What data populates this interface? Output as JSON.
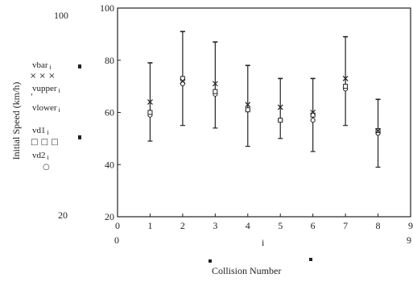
{
  "chart_data": {
    "type": "scatter",
    "x": [
      1,
      2,
      3,
      4,
      5,
      6,
      7,
      8
    ],
    "series": [
      {
        "name": "vbar",
        "values": [
          64,
          72,
          71,
          63,
          62,
          60,
          73,
          53
        ],
        "marker": "x"
      },
      {
        "name": "vupper",
        "values": [
          79,
          91,
          87,
          78,
          73,
          73,
          89,
          65
        ],
        "marker": "tick"
      },
      {
        "name": "vlower",
        "values": [
          49,
          55,
          54,
          47,
          50,
          45,
          55,
          39
        ],
        "marker": "tick"
      },
      {
        "name": "vd1",
        "values": [
          60,
          73,
          68,
          61,
          57,
          59,
          70,
          53
        ],
        "marker": "square"
      },
      {
        "name": "vd2",
        "values": [
          59,
          71,
          67,
          61,
          57,
          57,
          69,
          52
        ],
        "marker": "circle"
      }
    ],
    "ylabel": "Initial Speed (km/h)",
    "xlabel": "Collision Number",
    "xlim": [
      0,
      9
    ],
    "ylim": [
      20,
      100
    ],
    "x_ticks": [
      "0",
      "1",
      "2",
      "3",
      "4",
      "5",
      "6",
      "7",
      "8",
      "9"
    ],
    "y_ticks": [
      "20",
      "40",
      "60",
      "80",
      "100"
    ],
    "outer_labels": {
      "y_top": "100",
      "y_bottom": "20",
      "x_left": "0",
      "x_mid": "i",
      "x_right": "9"
    },
    "legend": {
      "entries": [
        {
          "label": "vbar",
          "sub": "i",
          "marker_text": "× × ×"
        },
        {
          "label": "vupper",
          "sub": "i",
          "marker_text": "'"
        },
        {
          "label": "vlower",
          "sub": "i",
          "marker_text": ""
        },
        {
          "label": "vd1",
          "sub": "i",
          "marker_text": "□ □ □"
        },
        {
          "label": "vd2",
          "sub": "i",
          "marker_text": "○"
        }
      ]
    },
    "grid": false,
    "colors": {
      "ink": "#222222"
    }
  }
}
